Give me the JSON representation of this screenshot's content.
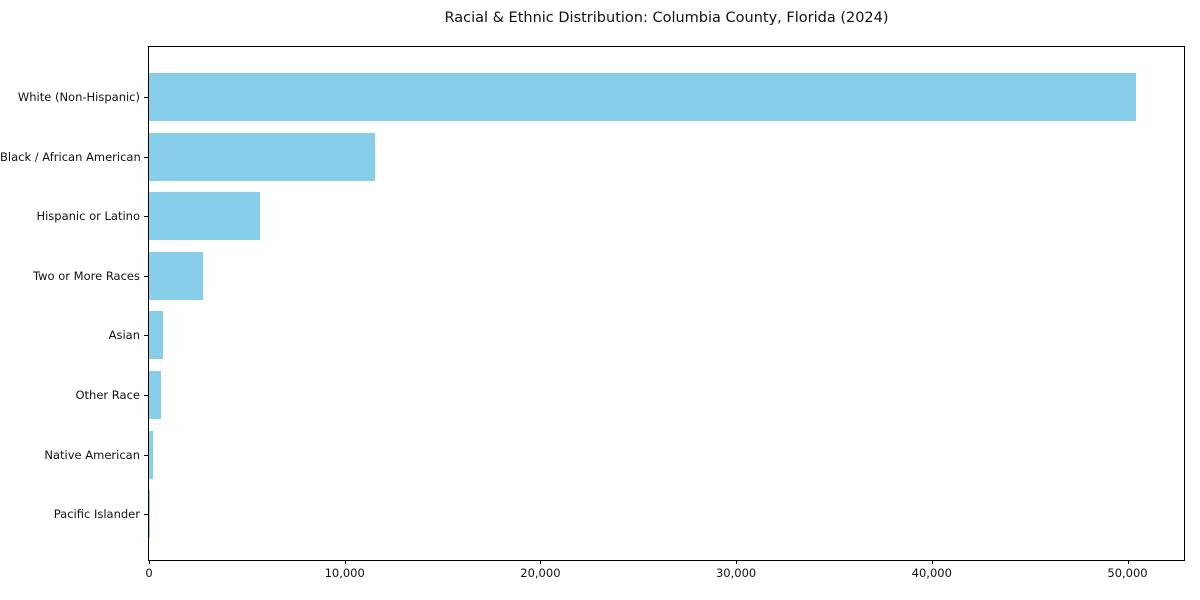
{
  "title": "Racial & Ethnic Distribution: Columbia County, Florida (2024)",
  "colors": {
    "bar": "#87ceeb",
    "spine": "#000000",
    "text": "#111111",
    "background": "#ffffff"
  },
  "chart_data": {
    "type": "bar",
    "orientation": "horizontal",
    "title": "Racial & Ethnic Distribution: Columbia County, Florida (2024)",
    "xlabel": "",
    "ylabel": "",
    "grid": false,
    "legend": null,
    "xlim": [
      0,
      52900
    ],
    "categories": [
      "White (Non-Hispanic)",
      "Black / African American",
      "Hispanic or Latino",
      "Two or More Races",
      "Asian",
      "Other Race",
      "Native American",
      "Pacific Islander"
    ],
    "values": [
      50430,
      11560,
      5650,
      2740,
      720,
      610,
      180,
      40
    ],
    "bar_color": "#87ceeb",
    "x_ticks": {
      "values": [
        0,
        10000,
        20000,
        30000,
        40000,
        50000
      ],
      "labels": [
        "0",
        "10,000",
        "20,000",
        "30,000",
        "40,000",
        "50,000"
      ]
    }
  }
}
